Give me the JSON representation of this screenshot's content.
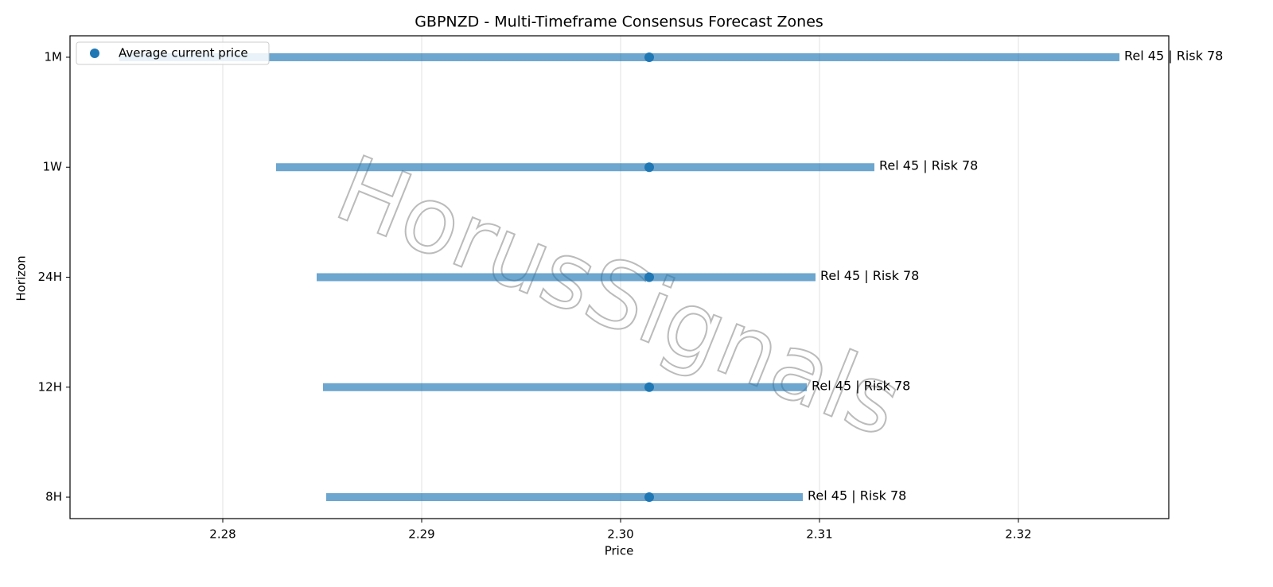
{
  "chart_data": {
    "type": "range",
    "title": "GBPNZD - Multi-Timeframe Consensus Forecast Zones",
    "x_label": "Price",
    "y_label": "Horizon",
    "watermark": "HorusSignals",
    "categories": [
      "1M",
      "1W",
      "24H",
      "12H",
      "8H"
    ],
    "low": [
      2.2748,
      2.28268,
      2.28472,
      2.28504,
      2.2852
    ],
    "high": [
      2.32508,
      2.31276,
      2.3098,
      2.30936,
      2.30916
    ],
    "range_color": "#1f77b4",
    "annotations": [
      "Rel 45 | Risk 78",
      "Rel 45 | Risk 78",
      "Rel 45 | Risk 78",
      "Rel 45 | Risk 78",
      "Rel 45 | Risk 78"
    ],
    "series": [
      {
        "name": "Average current price",
        "color": "#1f77b4",
        "values": [
          2.30144,
          2.30144,
          2.30144,
          2.30144,
          2.30144
        ]
      }
    ],
    "xlim": [
      2.27232,
      2.32756
    ],
    "xticks": [
      2.28,
      2.29,
      2.3,
      2.31,
      2.32
    ],
    "xtick_labels": [
      "2.28",
      "2.29",
      "2.30",
      "2.31",
      "2.32"
    ],
    "grid": true,
    "legend": "upper left"
  }
}
